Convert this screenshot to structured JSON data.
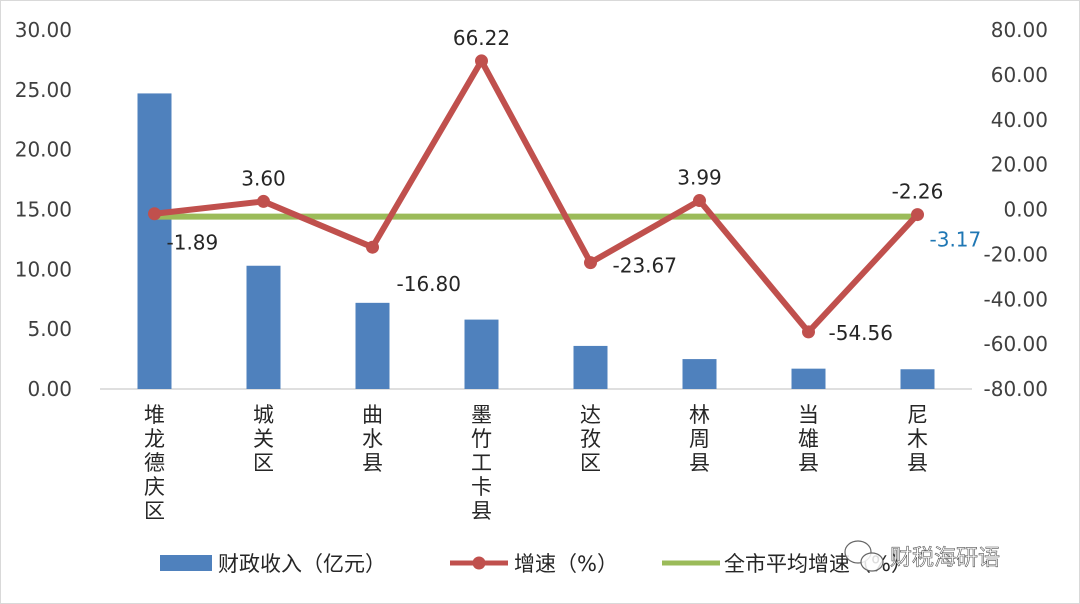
{
  "chart_data": {
    "type": "bar",
    "categories": [
      "堆龙德庆区",
      "城关区",
      "曲水县",
      "墨竹工卡县",
      "达孜区",
      "林周县",
      "当雄县",
      "尼木县"
    ],
    "series": [
      {
        "name": "财政收入（亿元）",
        "type": "bar",
        "axis": "left",
        "color": "#4f81bd",
        "values": [
          24.7,
          10.3,
          7.2,
          5.8,
          3.6,
          2.5,
          1.7,
          1.65
        ]
      },
      {
        "name": "增速（%）",
        "type": "line",
        "axis": "right",
        "color": "#c0504d",
        "values": [
          -1.89,
          3.6,
          -16.8,
          66.22,
          -23.67,
          3.99,
          -54.56,
          -2.26
        ],
        "data_labels": [
          "-1.89",
          "3.60",
          "-16.80",
          "66.22",
          "-23.67",
          "3.99",
          "-54.56",
          "-2.26"
        ]
      },
      {
        "name": "全市平均增速（%）",
        "type": "line",
        "axis": "right",
        "color": "#9bbb59",
        "values": [
          -3.17,
          -3.17,
          -3.17,
          -3.17,
          -3.17,
          -3.17,
          -3.17,
          -3.17
        ],
        "data_label": "-3.17"
      }
    ],
    "y_left": {
      "min": 0,
      "max": 30,
      "step": 5,
      "ticks": [
        "0.00",
        "5.00",
        "10.00",
        "15.00",
        "20.00",
        "25.00",
        "30.00"
      ]
    },
    "y_right": {
      "min": -80,
      "max": 80,
      "step": 20,
      "ticks": [
        "-80.00",
        "-60.00",
        "-40.00",
        "-20.00",
        "0.00",
        "20.00",
        "40.00",
        "60.00",
        "80.00"
      ]
    },
    "grid": false,
    "legend_position": "bottom"
  },
  "watermark": {
    "text": "财税海研语",
    "icon": "wechat-icon"
  }
}
